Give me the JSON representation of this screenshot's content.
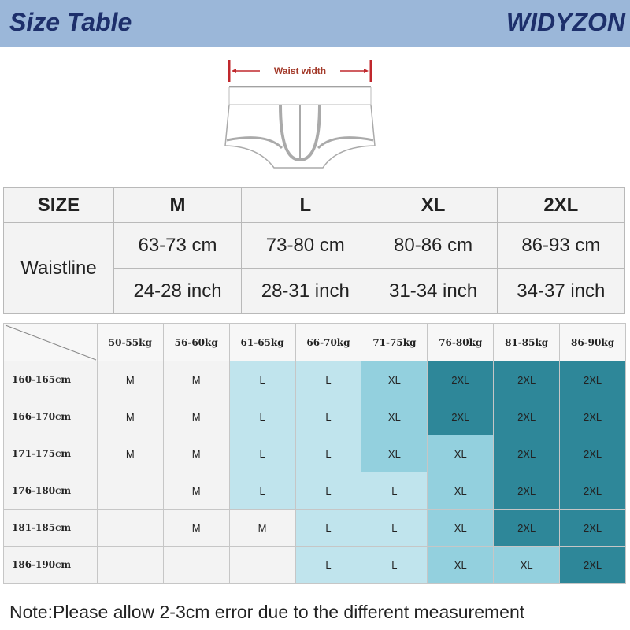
{
  "header": {
    "title": "Size Table",
    "brand": "WIDYZON"
  },
  "diagram": {
    "label": "Waist width"
  },
  "size_table": {
    "header_label": "SIZE",
    "sizes": [
      "M",
      "L",
      "XL",
      "2XL"
    ],
    "row_label": "Waistline",
    "cm": [
      "63-73 cm",
      "73-80 cm",
      "80-86 cm",
      "86-93 cm"
    ],
    "inch": [
      "24-28 inch",
      "28-31 inch",
      "31-34 inch",
      "34-37 inch"
    ]
  },
  "fit_grid": {
    "weights": [
      "50-55kg",
      "56-60kg",
      "61-65kg",
      "66-70kg",
      "71-75kg",
      "76-80kg",
      "81-85kg",
      "86-90kg"
    ],
    "rows": [
      {
        "height": "160-165cm",
        "cells": [
          "M",
          "M",
          "L",
          "L",
          "XL",
          "2XL",
          "2XL",
          "2XL"
        ]
      },
      {
        "height": "166-170cm",
        "cells": [
          "M",
          "M",
          "L",
          "L",
          "XL",
          "2XL",
          "2XL",
          "2XL"
        ]
      },
      {
        "height": "171-175cm",
        "cells": [
          "M",
          "M",
          "L",
          "L",
          "XL",
          "XL",
          "2XL",
          "2XL"
        ]
      },
      {
        "height": "176-180cm",
        "cells": [
          "",
          "M",
          "L",
          "L",
          "L",
          "XL",
          "2XL",
          "2XL"
        ]
      },
      {
        "height": "181-185cm",
        "cells": [
          "",
          "M",
          "M",
          "L",
          "L",
          "XL",
          "2XL",
          "2XL"
        ]
      },
      {
        "height": "186-190cm",
        "cells": [
          "",
          "",
          "",
          "L",
          "L",
          "XL",
          "XL",
          "2XL"
        ]
      }
    ],
    "colors": {
      "M": "#f3f3f3",
      "": "#f3f3f3",
      "L": "#c0e4ed",
      "XL": "#93d0de",
      "2XL": "#2e8799"
    }
  },
  "note": "Note:Please allow 2-3cm error due to the different measurement"
}
